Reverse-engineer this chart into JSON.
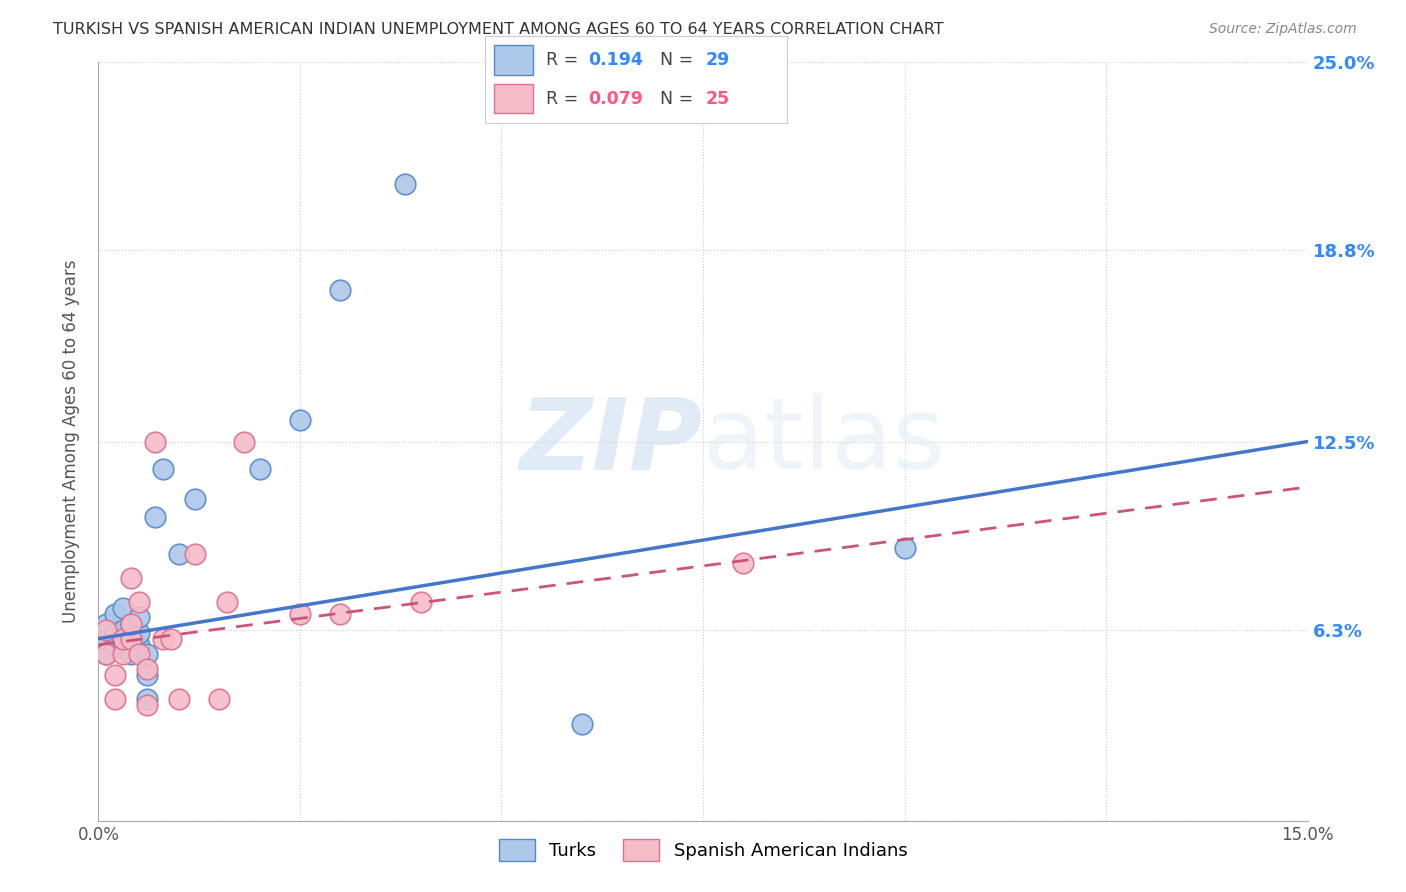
{
  "title": "TURKISH VS SPANISH AMERICAN INDIAN UNEMPLOYMENT AMONG AGES 60 TO 64 YEARS CORRELATION CHART",
  "source": "Source: ZipAtlas.com",
  "ylabel": "Unemployment Among Ages 60 to 64 years",
  "xmin": 0.0,
  "xmax": 0.15,
  "ymin": 0.0,
  "ymax": 0.25,
  "yticks": [
    0.0,
    0.063,
    0.125,
    0.188,
    0.25
  ],
  "ytick_labels": [
    "",
    "6.3%",
    "12.5%",
    "18.8%",
    "25.0%"
  ],
  "xticks": [
    0.0,
    0.025,
    0.05,
    0.075,
    0.1,
    0.125,
    0.15
  ],
  "xtick_labels": [
    "0.0%",
    "",
    "",
    "",
    "",
    "",
    "15.0%"
  ],
  "turks_R": 0.194,
  "turks_N": 29,
  "spanish_R": 0.079,
  "spanish_N": 25,
  "turks_color": "#adc8e8",
  "turks_edge_color": "#5588cc",
  "spanish_color": "#f5bcc8",
  "spanish_edge_color": "#dd7090",
  "turks_line_color": "#4477cc",
  "spanish_line_color": "#cc5577",
  "turks_line_y0": 0.06,
  "turks_line_y1": 0.125,
  "spanish_line_y0": 0.058,
  "spanish_line_y1": 0.11,
  "watermark_zip": "ZIP",
  "watermark_atlas": "atlas",
  "turks_x": [
    0.001,
    0.001,
    0.001,
    0.002,
    0.002,
    0.002,
    0.003,
    0.003,
    0.003,
    0.003,
    0.004,
    0.004,
    0.004,
    0.005,
    0.005,
    0.005,
    0.006,
    0.006,
    0.006,
    0.007,
    0.008,
    0.01,
    0.012,
    0.02,
    0.025,
    0.03,
    0.038,
    0.06,
    0.1
  ],
  "turks_y": [
    0.055,
    0.06,
    0.065,
    0.058,
    0.062,
    0.068,
    0.057,
    0.06,
    0.063,
    0.07,
    0.055,
    0.06,
    0.065,
    0.058,
    0.062,
    0.067,
    0.04,
    0.048,
    0.055,
    0.1,
    0.116,
    0.088,
    0.106,
    0.116,
    0.132,
    0.175,
    0.21,
    0.032,
    0.09
  ],
  "spanish_x": [
    0.001,
    0.001,
    0.002,
    0.002,
    0.003,
    0.003,
    0.004,
    0.004,
    0.004,
    0.005,
    0.005,
    0.006,
    0.006,
    0.007,
    0.008,
    0.009,
    0.01,
    0.012,
    0.015,
    0.016,
    0.018,
    0.025,
    0.03,
    0.04,
    0.08
  ],
  "spanish_y": [
    0.055,
    0.063,
    0.04,
    0.048,
    0.055,
    0.06,
    0.06,
    0.065,
    0.08,
    0.055,
    0.072,
    0.038,
    0.05,
    0.125,
    0.06,
    0.06,
    0.04,
    0.088,
    0.04,
    0.072,
    0.125,
    0.068,
    0.068,
    0.072,
    0.085
  ]
}
